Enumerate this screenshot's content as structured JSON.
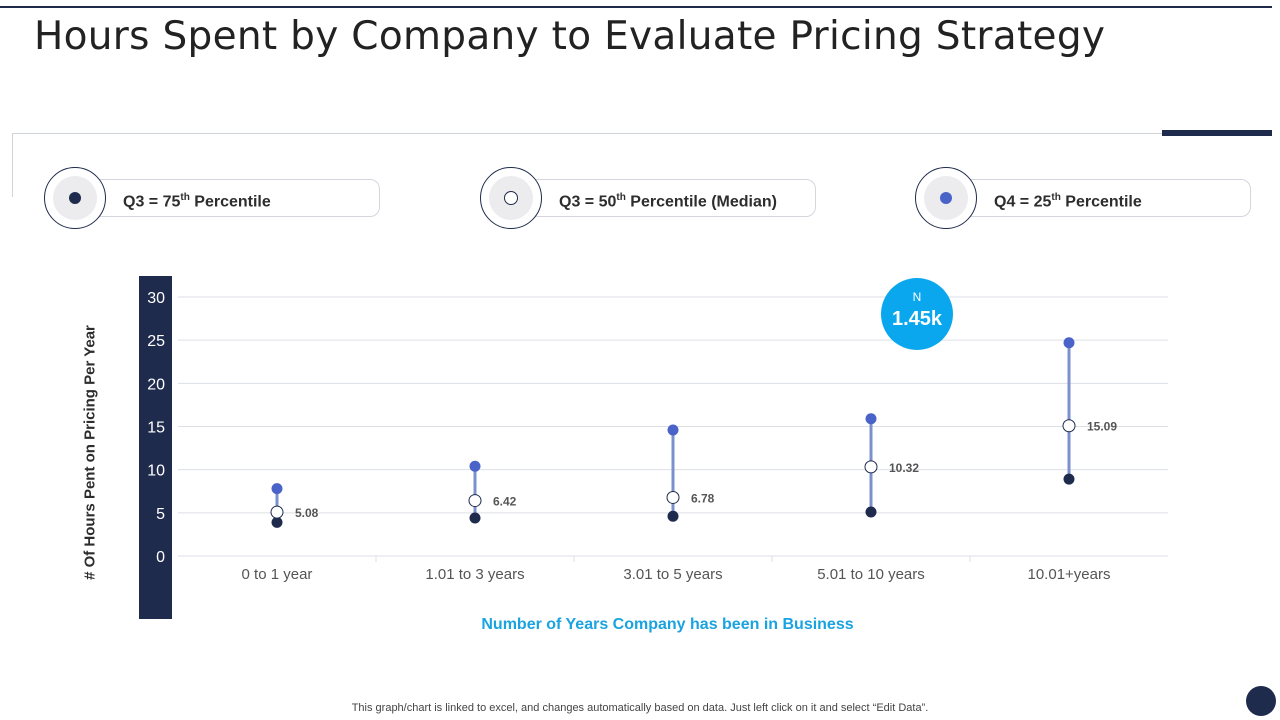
{
  "title": "Hours Spent by Company to Evaluate Pricing Strategy",
  "legend": [
    {
      "prefix": "Q3 = 75",
      "sup": "th",
      "suffix": " Percentile",
      "color": "#1f2b4d",
      "marker": "filled-dark"
    },
    {
      "prefix": "Q3 = 50",
      "sup": "th",
      "suffix": " Percentile (Median)",
      "color": "#ffffff",
      "marker": "hollow"
    },
    {
      "prefix": "Q4 = 25",
      "sup": "th",
      "suffix": " Percentile",
      "color": "#4a63c8",
      "marker": "filled-blue"
    }
  ],
  "badge": {
    "label": "N",
    "value": "1.45k"
  },
  "footnote": "This graph/chart is linked to excel,  and changes automatically based on data. Just left click on it and select “Edit Data”.",
  "colors": {
    "dark": "#1f2b4d",
    "blue": "#4a63c8",
    "line": "#7b91cf",
    "accent": "#0aa7ee",
    "grid": "#dcdfe4"
  },
  "chart_data": {
    "type": "scatter",
    "xlabel": "Number of Years Company has been in Business",
    "ylabel": "# Of Hours Pent on Pricing Per Year",
    "categories": [
      "0 to 1 year",
      "1.01 to 3 years",
      "3.01 to 5 years",
      "5.01 to 10 years",
      "10.01+years"
    ],
    "ylim": [
      0,
      30
    ],
    "yticks": [
      0,
      5,
      10,
      15,
      20,
      25,
      30
    ],
    "grid": true,
    "series": [
      {
        "marker": "filled-blue",
        "values": [
          7.8,
          10.4,
          14.6,
          15.9,
          24.7
        ]
      },
      {
        "marker": "hollow",
        "values": [
          5.08,
          6.42,
          6.78,
          10.32,
          15.09
        ],
        "labels": [
          "5.08",
          "6.42",
          "6.78",
          "10.32",
          "15.09"
        ]
      },
      {
        "marker": "filled-dark",
        "values": [
          3.9,
          4.4,
          4.6,
          5.1,
          8.9
        ]
      }
    ]
  }
}
